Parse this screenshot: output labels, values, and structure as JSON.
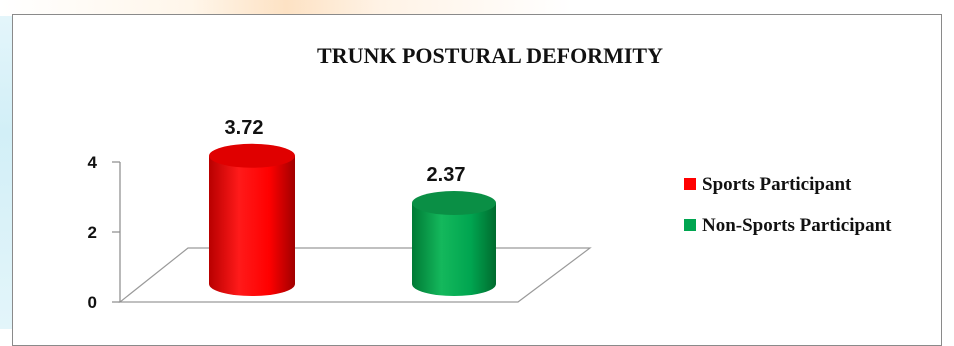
{
  "chart_data": {
    "type": "bar",
    "style": "3d-cylinder",
    "title": "TRUNK POSTURAL DEFORMITY",
    "xlabel": "",
    "ylabel": "",
    "ylim": [
      0,
      4
    ],
    "yticks": [
      0,
      2,
      4
    ],
    "categories": [
      "Sports Participant",
      "Non-Sports Participant"
    ],
    "values": [
      3.72,
      2.37
    ],
    "data_labels": [
      "3.72",
      "2.37"
    ],
    "series": [
      {
        "name": "Sports Participant",
        "value": 3.72,
        "color": "#ff0000"
      },
      {
        "name": "Non-Sports Participant",
        "value": 2.37,
        "color": "#00a550"
      }
    ],
    "legend_position": "right",
    "grid": false
  }
}
